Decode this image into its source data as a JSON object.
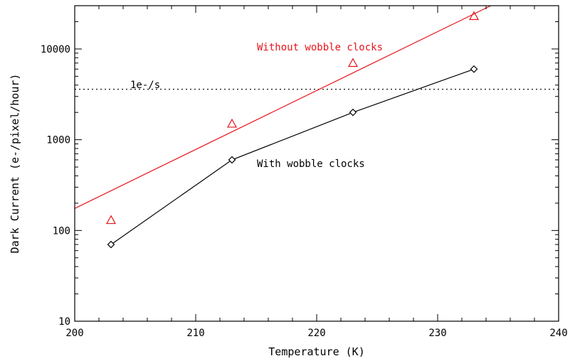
{
  "chart_data": {
    "type": "line",
    "xlabel": "Temperature (K)",
    "ylabel": "Dark Current (e-/pixel/hour)",
    "xlim": [
      200,
      240
    ],
    "ylim": [
      10,
      30000
    ],
    "yscale": "log",
    "x_ticks": [
      200,
      210,
      220,
      230,
      240
    ],
    "y_ticks": [
      10,
      100,
      1000,
      10000
    ],
    "x_tick_labels": [
      "200",
      "210",
      "220",
      "230",
      "240"
    ],
    "y_tick_labels": [
      "10",
      "100",
      "1000",
      "10000"
    ],
    "grid": false,
    "series": [
      {
        "name": "Without wobble clocks",
        "color": "#e8131b",
        "marker": "triangle",
        "points": [
          {
            "x": 203,
            "y": 130
          },
          {
            "x": 213,
            "y": 1500
          },
          {
            "x": 223,
            "y": 7000
          },
          {
            "x": 233,
            "y": 23000
          }
        ],
        "fit_line": [
          {
            "x": 200,
            "y": 175
          },
          {
            "x": 234.4,
            "y": 30000
          }
        ]
      },
      {
        "name": "With wobble clocks",
        "color": "#000000",
        "marker": "diamond",
        "points": [
          {
            "x": 203,
            "y": 70
          },
          {
            "x": 213,
            "y": 600
          },
          {
            "x": 223,
            "y": 2000
          },
          {
            "x": 233,
            "y": 6000
          }
        ]
      }
    ],
    "reference_line": {
      "label": "1e-/s",
      "y": 3600,
      "style": "dotted",
      "color": "#000000"
    },
    "annotations": [
      {
        "text": "Without wobble clocks",
        "x": 215,
        "y": 10000,
        "color": "#e8131b"
      },
      {
        "text": "With wobble clocks",
        "x": 215,
        "y": 800,
        "color": "#000000"
      }
    ]
  }
}
